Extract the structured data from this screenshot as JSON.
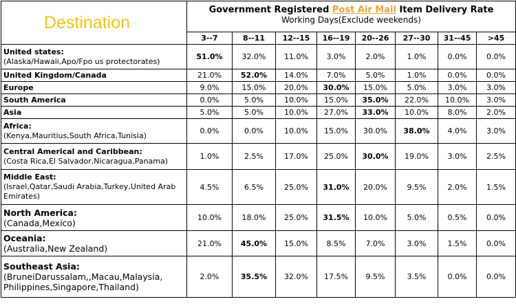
{
  "header": {
    "destination_label": "Destination",
    "title_prefix": "Government Registered ",
    "title_highlight": "Post Air Mail",
    "title_suffix": " Item Delivery Rate",
    "subtitle": "Working Days(Exclude weekends)",
    "columns": [
      "3--7",
      "8--11",
      "12--15",
      "16--19",
      "20--26",
      "27--30",
      "31--45",
      ">45"
    ]
  },
  "colors": {
    "destination": "#f0c419",
    "highlight": "#e8a33d",
    "border": "#000000"
  },
  "rows": [
    {
      "name": "United states:",
      "sub": "(Alaska/Hawaii,Apo/Fpo us protectorates)",
      "values": [
        "51.0%",
        "32.0%",
        "11.0%",
        "3.0%",
        "2.0%",
        "1.0%",
        "0.0%",
        "0.0%"
      ],
      "bold_index": 0
    },
    {
      "name": "United Kingdom/Canada",
      "sub": "",
      "values": [
        "21.0%",
        "52.0%",
        "14.0%",
        "7.0%",
        "5.0%",
        "1.0%",
        "0.0%",
        "0.0%"
      ],
      "bold_index": 1
    },
    {
      "name": "Europe",
      "sub": "",
      "values": [
        "9.0%",
        "15.0%",
        "20.0%",
        "30.0%",
        "15.0%",
        "5.0%",
        "3.0%",
        "3.0%"
      ],
      "bold_index": 3
    },
    {
      "name": "South America",
      "sub": "",
      "values": [
        "0.0%",
        "5.0%",
        "10.0%",
        "15.0%",
        "35.0%",
        "22.0%",
        "10.0%",
        "3.0%"
      ],
      "bold_index": 4
    },
    {
      "name": "Asia",
      "sub": "",
      "values": [
        "5.0%",
        "5.0%",
        "10.0%",
        "27.0%",
        "33.0%",
        "10.0%",
        "8.0%",
        "2.0%"
      ],
      "bold_index": 4
    },
    {
      "name": "Africa:",
      "sub": "(Kenya,Mauritius,South Africa,Tunisia)",
      "values": [
        "0.0%",
        "0.0%",
        "10.0%",
        "15.0%",
        "30.0%",
        "38.0%",
        "4.0%",
        "3.0%"
      ],
      "bold_index": 5
    },
    {
      "name": "Central Americal and Caribbean:",
      "sub": "(Costa Rica,El Salvador,Nicaragua,Panama)",
      "values": [
        "1.0%",
        "2.5%",
        "17.0%",
        "25.0%",
        "30.0%",
        "19.0%",
        "3.0%",
        "2.5%"
      ],
      "bold_index": 4
    },
    {
      "name": "Middle East:",
      "sub": "(Israel,Qatar,Saudi Arabia,Turkey,United Arab Emirates)",
      "values": [
        "4.5%",
        "6.5%",
        "25.0%",
        "31.0%",
        "20.0%",
        "9.5%",
        "2.0%",
        "1.5%"
      ],
      "bold_index": 3
    },
    {
      "name": "North America:",
      "sub": "(Canada,Mexico)",
      "values": [
        "10.0%",
        "18.0%",
        "25.0%",
        "31.5%",
        "10.0%",
        "5.0%",
        "0.5%",
        "0.0%"
      ],
      "bold_index": 3
    },
    {
      "name": "Oceania:",
      "sub": "(Australia,New Zealand)",
      "values": [
        "21.0%",
        "45.0%",
        "15.0%",
        "8.5%",
        "7.0%",
        "3.0%",
        "1.5%",
        "0.0%"
      ],
      "bold_index": 1
    },
    {
      "name": "Southeast Asia:",
      "sub": "(BruneiDarussalam,,Macau,Malaysia, Philippines,Singapore,Thailand)",
      "values": [
        "2.0%",
        "35.5%",
        "32.0%",
        "17.5%",
        "9.5%",
        "3.5%",
        "0.0%",
        "0.0%"
      ],
      "bold_index": 1
    }
  ]
}
